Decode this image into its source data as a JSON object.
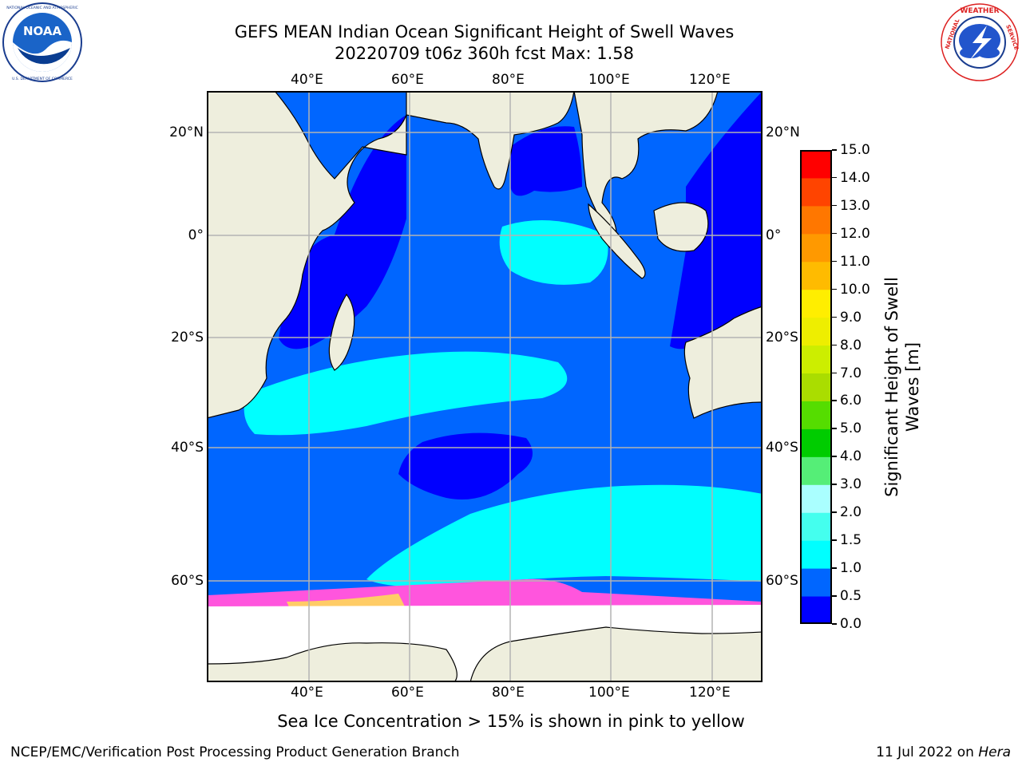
{
  "title_line1": "GEFS MEAN Indian Ocean Significant Height of Swell Waves",
  "title_line2": "20220709 t06z 360h fcst   Max: 1.58",
  "lon_labels": [
    "40°E",
    "60°E",
    "80°E",
    "100°E",
    "120°E"
  ],
  "lat_labels": [
    "20°N",
    "0°",
    "20°S",
    "40°S",
    "60°S"
  ],
  "colorbar": {
    "title": "Significant Height of Swell Waves [m]",
    "ticks": [
      "0.0",
      "0.5",
      "1.0",
      "1.5",
      "2.0",
      "3.0",
      "4.0",
      "5.0",
      "6.0",
      "7.0",
      "8.0",
      "9.0",
      "10.0",
      "11.0",
      "12.0",
      "13.0",
      "14.0",
      "15.0"
    ],
    "colors": [
      "#0000ff",
      "#0066ff",
      "#00ffff",
      "#44ffee",
      "#aaffff",
      "#55ee77",
      "#00cc00",
      "#55dd00",
      "#aadd00",
      "#ccee00",
      "#eeee00",
      "#ffee00",
      "#ffbb00",
      "#ff9900",
      "#ff7700",
      "#ff4400",
      "#ff0000"
    ]
  },
  "caption": "Sea Ice Concentration > 15% is shown in pink to yellow",
  "footer_left": "NCEP/EMC/Verification Post Processing Product Generation Branch",
  "footer_right_prefix": "11 Jul 2022 on ",
  "footer_right_machine": "Hera",
  "logos": {
    "left": {
      "name": "NOAA",
      "text": "NOAA",
      "ring_text": "NATIONAL OCEANIC AND ATMOSPHERIC ADMINISTRATION · U.S. DEPARTMENT OF COMMERCE"
    },
    "right": {
      "name": "National Weather Service",
      "ring_text": "NATIONAL WEATHER SERVICE"
    }
  },
  "map_colors": {
    "land": "#eeeedd",
    "deep": "#0000ff",
    "mid": "#0066ff",
    "high": "#00ffff",
    "ice": "#ffffff"
  }
}
